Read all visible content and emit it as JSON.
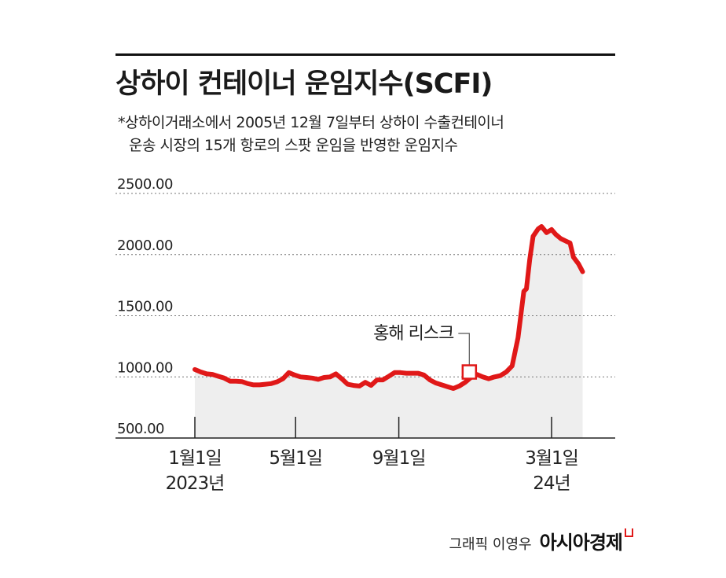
{
  "title": "상하이 컨테이너 운임지수(SCFI)",
  "note": {
    "line1": "*상하이거래소에서 2005년 12월 7일부터 상하이 수출컨테이너",
    "line2": "운송 시장의 15개 항로의 스팟 운임을 반영한 운임지수"
  },
  "credit": "그래픽 이영우",
  "brand": "아시아경제",
  "colors": {
    "line": "#e01818",
    "area": "#eeeeee",
    "grid": "#777777"
  },
  "chart_data": {
    "type": "area",
    "ylim": [
      500,
      2500
    ],
    "yticks": [
      "2500.00",
      "2000.00",
      "1500.00",
      "1000.00",
      "500.00"
    ],
    "ytick_values": [
      2500,
      2000,
      1500,
      1000,
      500
    ],
    "grid": "dotted-horizontal",
    "x_ticks": [
      {
        "line1": "1월1일",
        "line2": "2023년",
        "x": "2023-01-01"
      },
      {
        "line1": "5월1일",
        "line2": "",
        "x": "2023-05-01"
      },
      {
        "line1": "9월1일",
        "line2": "",
        "x": "2023-09-01"
      },
      {
        "line1": "3월1일",
        "line2": "24년",
        "x": "2024-03-01"
      }
    ],
    "annotation": {
      "label": "홍해 리스크",
      "x": "2023-11-24",
      "y": 1040
    },
    "series": [
      {
        "points": [
          [
            "2023-01-01",
            1060
          ],
          [
            "2023-01-08",
            1040
          ],
          [
            "2023-01-15",
            1025
          ],
          [
            "2023-01-22",
            1020
          ],
          [
            "2023-01-29",
            1005
          ],
          [
            "2023-02-05",
            990
          ],
          [
            "2023-02-12",
            965
          ],
          [
            "2023-02-19",
            965
          ],
          [
            "2023-02-26",
            962
          ],
          [
            "2023-03-05",
            945
          ],
          [
            "2023-03-12",
            935
          ],
          [
            "2023-03-19",
            935
          ],
          [
            "2023-03-26",
            940
          ],
          [
            "2023-04-02",
            945
          ],
          [
            "2023-04-09",
            960
          ],
          [
            "2023-04-16",
            985
          ],
          [
            "2023-04-23",
            1035
          ],
          [
            "2023-04-30",
            1015
          ],
          [
            "2023-05-07",
            1000
          ],
          [
            "2023-05-14",
            995
          ],
          [
            "2023-05-21",
            990
          ],
          [
            "2023-05-28",
            980
          ],
          [
            "2023-06-04",
            995
          ],
          [
            "2023-06-11",
            1000
          ],
          [
            "2023-06-18",
            1025
          ],
          [
            "2023-06-25",
            985
          ],
          [
            "2023-07-02",
            940
          ],
          [
            "2023-07-09",
            930
          ],
          [
            "2023-07-16",
            925
          ],
          [
            "2023-07-23",
            955
          ],
          [
            "2023-07-30",
            930
          ],
          [
            "2023-08-06",
            975
          ],
          [
            "2023-08-13",
            975
          ],
          [
            "2023-08-20",
            1005
          ],
          [
            "2023-08-27",
            1035
          ],
          [
            "2023-09-03",
            1035
          ],
          [
            "2023-09-10",
            1030
          ],
          [
            "2023-09-17",
            1030
          ],
          [
            "2023-09-24",
            1030
          ],
          [
            "2023-10-01",
            1015
          ],
          [
            "2023-10-08",
            975
          ],
          [
            "2023-10-15",
            950
          ],
          [
            "2023-10-22",
            935
          ],
          [
            "2023-10-29",
            920
          ],
          [
            "2023-11-05",
            905
          ],
          [
            "2023-11-12",
            925
          ],
          [
            "2023-11-19",
            955
          ],
          [
            "2023-11-26",
            995
          ],
          [
            "2023-12-03",
            1020
          ],
          [
            "2023-12-10",
            1000
          ],
          [
            "2023-12-17",
            985
          ],
          [
            "2023-12-24",
            1000
          ],
          [
            "2023-12-31",
            1010
          ],
          [
            "2024-01-07",
            1040
          ],
          [
            "2024-01-14",
            1090
          ],
          [
            "2024-01-21",
            1320
          ],
          [
            "2024-01-28",
            1700
          ],
          [
            "2024-01-31",
            1720
          ],
          [
            "2024-02-04",
            1960
          ],
          [
            "2024-02-08",
            2150
          ],
          [
            "2024-02-14",
            2210
          ],
          [
            "2024-02-18",
            2230
          ],
          [
            "2024-02-24",
            2180
          ],
          [
            "2024-03-01",
            2205
          ],
          [
            "2024-03-06",
            2165
          ],
          [
            "2024-03-12",
            2130
          ],
          [
            "2024-03-18",
            2110
          ],
          [
            "2024-03-23",
            2095
          ],
          [
            "2024-03-27",
            1980
          ],
          [
            "2024-04-02",
            1925
          ],
          [
            "2024-04-07",
            1860
          ]
        ]
      }
    ]
  }
}
